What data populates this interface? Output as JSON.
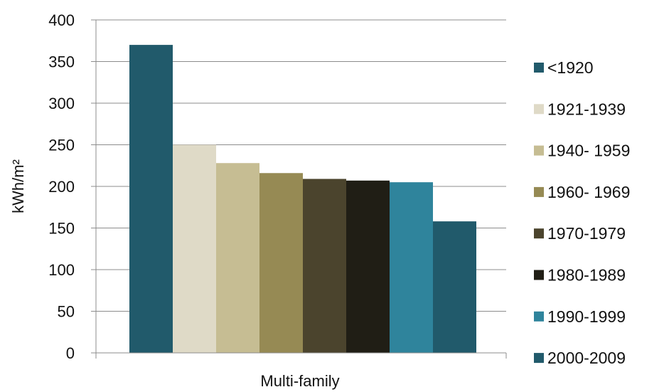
{
  "chart_data": {
    "type": "bar",
    "categories": [
      "Multi-family"
    ],
    "xlabel": "Multi-family",
    "ylabel": "kWh/m²",
    "ylim": [
      0,
      400
    ],
    "yticks": [
      0,
      50,
      100,
      150,
      200,
      250,
      300,
      350,
      400
    ],
    "grid": true,
    "legend_position": "right",
    "series": [
      {
        "name": "<1920",
        "values": [
          370
        ],
        "color": "#215a6b"
      },
      {
        "name": "1921-1939",
        "values": [
          250
        ],
        "color": "#dfdac7"
      },
      {
        "name": "1940- 1959",
        "values": [
          228
        ],
        "color": "#c6bd93"
      },
      {
        "name": "1960- 1969",
        "values": [
          216
        ],
        "color": "#968a54"
      },
      {
        "name": "1970-1979",
        "values": [
          209
        ],
        "color": "#4b442d"
      },
      {
        "name": "1980-1989",
        "values": [
          207
        ],
        "color": "#201e15"
      },
      {
        "name": "1990-1999",
        "values": [
          205
        ],
        "color": "#2f849c"
      },
      {
        "name": "2000-2009",
        "values": [
          158
        ],
        "color": "#215a6b"
      }
    ]
  }
}
